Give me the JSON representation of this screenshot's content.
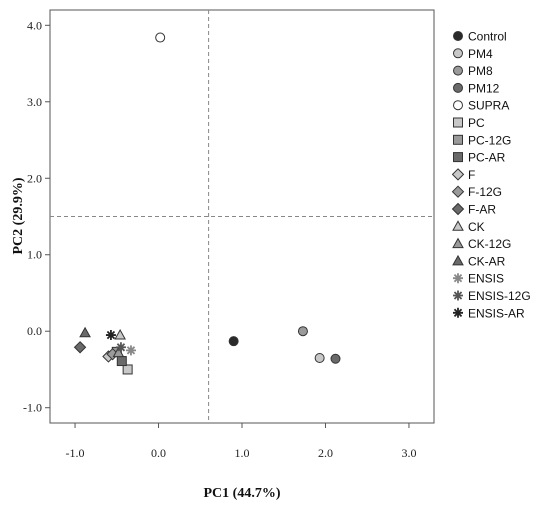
{
  "chart_data": {
    "type": "scatter",
    "xlabel": "PC1 (44.7%)",
    "ylabel": "PC2 (29.9%)",
    "xlim": [
      -1.3,
      3.3
    ],
    "ylim": [
      -1.2,
      4.2
    ],
    "x_ticks": [
      -1.0,
      0.0,
      1.0,
      2.0,
      3.0
    ],
    "x_tick_labels": [
      "-1.0",
      "0.0",
      "1.0",
      "2.0",
      "3.0"
    ],
    "y_ticks": [
      -1.0,
      0.0,
      1.0,
      2.0,
      3.0,
      4.0
    ],
    "y_tick_labels": [
      "-1.0",
      "0.0",
      "1.0",
      "2.0",
      "3.0",
      "4.0"
    ],
    "ref_lines": {
      "x": 0.6,
      "y": 1.5
    },
    "grid": false,
    "legend_position": "right",
    "series": [
      {
        "name": "Control",
        "marker": "circle",
        "fill": "#2a2a2a",
        "points": [
          [
            0.9,
            -0.13
          ]
        ]
      },
      {
        "name": "PM4",
        "marker": "circle",
        "fill": "#c8c8c8",
        "points": [
          [
            1.93,
            -0.35
          ]
        ]
      },
      {
        "name": "PM8",
        "marker": "circle",
        "fill": "#9a9a9a",
        "points": [
          [
            1.73,
            0.0
          ]
        ]
      },
      {
        "name": "PM12",
        "marker": "circle",
        "fill": "#6a6a6a",
        "points": [
          [
            2.12,
            -0.36
          ]
        ]
      },
      {
        "name": "SUPRA",
        "marker": "circle",
        "fill": "#ffffff",
        "points": [
          [
            0.02,
            3.84
          ]
        ]
      },
      {
        "name": "PC",
        "marker": "square",
        "fill": "#c8c8c8",
        "points": [
          [
            -0.37,
            -0.5
          ]
        ]
      },
      {
        "name": "PC-12G",
        "marker": "square",
        "fill": "#9a9a9a",
        "points": [
          [
            -0.5,
            -0.27
          ]
        ]
      },
      {
        "name": "PC-AR",
        "marker": "square",
        "fill": "#6a6a6a",
        "points": [
          [
            -0.44,
            -0.39
          ]
        ]
      },
      {
        "name": "F",
        "marker": "diamond",
        "fill": "#c8c8c8",
        "points": [
          [
            -0.6,
            -0.33
          ]
        ]
      },
      {
        "name": "F-12G",
        "marker": "diamond",
        "fill": "#9a9a9a",
        "points": [
          [
            -0.55,
            -0.3
          ]
        ]
      },
      {
        "name": "F-AR",
        "marker": "diamond",
        "fill": "#6a6a6a",
        "points": [
          [
            -0.94,
            -0.21
          ]
        ]
      },
      {
        "name": "CK",
        "marker": "triangle",
        "fill": "#c8c8c8",
        "points": [
          [
            -0.46,
            -0.05
          ]
        ]
      },
      {
        "name": "CK-12G",
        "marker": "triangle",
        "fill": "#9a9a9a",
        "points": [
          [
            -0.48,
            -0.28
          ]
        ]
      },
      {
        "name": "CK-AR",
        "marker": "triangle",
        "fill": "#6a6a6a",
        "points": [
          [
            -0.88,
            -0.02
          ]
        ]
      },
      {
        "name": "ENSIS",
        "marker": "asterisk",
        "fill": "#c8c8c8",
        "points": [
          [
            -0.33,
            -0.25
          ]
        ]
      },
      {
        "name": "ENSIS-12G",
        "marker": "asterisk",
        "fill": "#9a9a9a",
        "points": [
          [
            -0.45,
            -0.21
          ]
        ]
      },
      {
        "name": "ENSIS-AR",
        "marker": "asterisk",
        "fill": "#6a6a6a",
        "points": [
          [
            -0.57,
            -0.05
          ]
        ]
      }
    ]
  }
}
